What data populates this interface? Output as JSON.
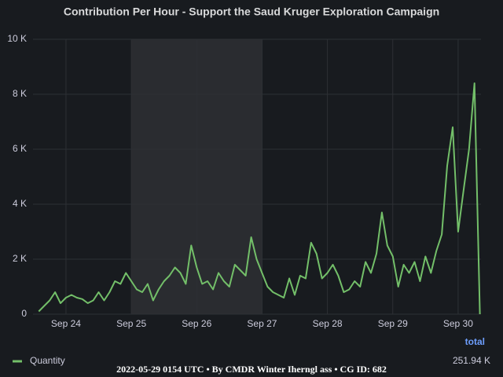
{
  "chart_data": {
    "type": "line",
    "title": "Contribution Per Hour - Support the Saud Kruger Exploration Campaign",
    "footer": "2022-05-29 0154 UTC • By CMDR Winter Iherngl ass • CG ID: 682",
    "categories": [
      null,
      null,
      null,
      null,
      null,
      "Sep 24",
      null,
      null,
      null,
      null,
      null,
      null,
      null,
      null,
      null,
      null,
      null,
      "Sep 25",
      null,
      null,
      null,
      null,
      null,
      null,
      null,
      null,
      null,
      null,
      null,
      "Sep 26",
      null,
      null,
      null,
      null,
      null,
      null,
      null,
      null,
      null,
      null,
      null,
      "Sep 27",
      null,
      null,
      null,
      null,
      null,
      null,
      null,
      null,
      null,
      null,
      null,
      "Sep 28",
      null,
      null,
      null,
      null,
      null,
      null,
      null,
      null,
      null,
      null,
      null,
      "Sep 29",
      null,
      null,
      null,
      null,
      null,
      null,
      null,
      null,
      null,
      null,
      null,
      "Sep 30",
      null,
      null,
      null,
      null
    ],
    "series": [
      {
        "name": "Quantity",
        "color": "#73bf69",
        "values": [
          100,
          300,
          500,
          800,
          400,
          600,
          700,
          600,
          550,
          400,
          500,
          800,
          500,
          800,
          1200,
          1100,
          1500,
          1200,
          900,
          800,
          1100,
          500,
          900,
          1200,
          1400,
          1700,
          1500,
          1100,
          2500,
          1700,
          1100,
          1200,
          900,
          1500,
          1200,
          1000,
          1800,
          1600,
          1400,
          2800,
          2000,
          1500,
          1000,
          800,
          700,
          600,
          1300,
          700,
          1400,
          1300,
          2600,
          2200,
          1300,
          1500,
          1800,
          1400,
          800,
          900,
          1200,
          1000,
          1900,
          1500,
          2200,
          3700,
          2500,
          2100,
          1000,
          1800,
          1500,
          1900,
          1200,
          2100,
          1500,
          2300,
          2900,
          5400,
          6800,
          3000,
          4500,
          6000,
          8400,
          0
        ],
        "total": 251940,
        "total_label": "251.94 K"
      }
    ],
    "legend_header": "total",
    "ylim": [
      0,
      10000
    ],
    "yticks": [
      0,
      {
        "value": 2000,
        "label": "2 K"
      },
      {
        "value": 4000,
        "label": "4 K"
      },
      {
        "value": 6000,
        "label": "6 K"
      },
      {
        "value": 8000,
        "label": "8 K"
      },
      {
        "value": 10000,
        "label": "10 K"
      }
    ],
    "grid": true
  }
}
